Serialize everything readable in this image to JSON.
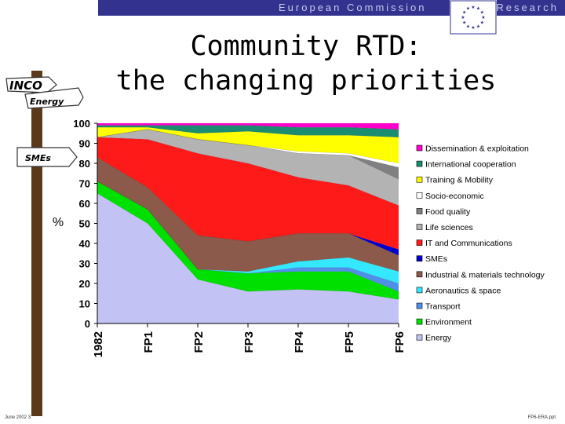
{
  "header": {
    "org": "European Commission",
    "section": "Research"
  },
  "title_line1": "Community RTD:",
  "title_line2": "the changing priorities",
  "signpost": {
    "labels": [
      "INCO",
      "Energy",
      "SMEs"
    ]
  },
  "footer": {
    "left": "June 2002 3",
    "right": "FP6-ERA.ppt"
  },
  "chart_data": {
    "type": "area",
    "stacked": true,
    "categories": [
      "1982",
      "FP1",
      "FP2",
      "FP3",
      "FP4",
      "FP5",
      "FP6"
    ],
    "ylabel": "%",
    "ylim": [
      0,
      100
    ],
    "yticks": [
      0,
      10,
      20,
      30,
      40,
      50,
      60,
      70,
      80,
      90,
      100
    ],
    "legend_position": "right",
    "series": [
      {
        "name": "Energy",
        "color": "#c2c2f5",
        "values": [
          65,
          50,
          22,
          16,
          17,
          16,
          12
        ]
      },
      {
        "name": "Environment",
        "color": "#00e000",
        "values": [
          6,
          7,
          5,
          9,
          9,
          10,
          4
        ]
      },
      {
        "name": "Transport",
        "color": "#4f8fe8",
        "values": [
          0,
          0,
          0,
          0,
          2,
          2,
          4
        ]
      },
      {
        "name": "Aeronautics & space",
        "color": "#33e8ff",
        "values": [
          0,
          0,
          0,
          1,
          3,
          5,
          6
        ]
      },
      {
        "name": "Industrial & materials technology",
        "color": "#8b5a4a",
        "values": [
          12,
          11,
          17,
          15,
          14,
          12,
          8
        ]
      },
      {
        "name": "SMEs",
        "color": "#0000cc",
        "values": [
          0,
          0,
          0,
          0,
          0,
          0,
          3
        ]
      },
      {
        "name": "IT and Communications",
        "color": "#ff1a1a",
        "values": [
          10,
          24,
          41,
          39,
          28,
          24,
          22
        ]
      },
      {
        "name": "Life sciences",
        "color": "#b3b3b3",
        "values": [
          0,
          5,
          7,
          9,
          12,
          15,
          13
        ]
      },
      {
        "name": "Food quality",
        "color": "#808080",
        "values": [
          0,
          0,
          0,
          0,
          0,
          0,
          6
        ]
      },
      {
        "name": "Socio-economic",
        "color": "#ffffff",
        "values": [
          0,
          0,
          0,
          0,
          1,
          1,
          2
        ]
      },
      {
        "name": "Training & Mobility",
        "color": "#ffff00",
        "values": [
          5,
          1,
          3,
          7,
          8,
          9,
          13
        ]
      },
      {
        "name": "International cooperation",
        "color": "#1a8c70",
        "values": [
          1,
          1,
          4,
          3,
          4,
          4,
          4
        ]
      },
      {
        "name": "Dissemination & exploitation",
        "color": "#ff00cc",
        "values": [
          1,
          1,
          1,
          1,
          2,
          2,
          3
        ]
      }
    ]
  }
}
